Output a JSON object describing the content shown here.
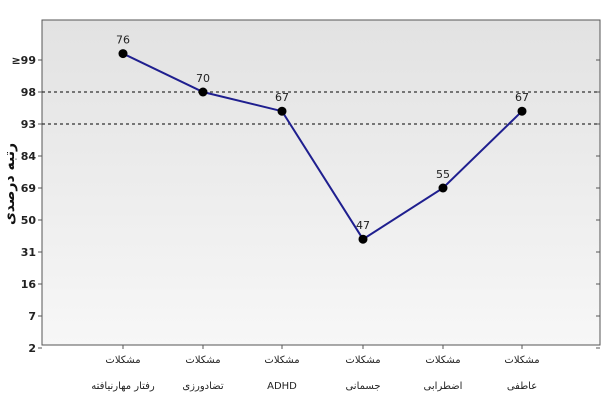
{
  "chart_data": {
    "type": "line",
    "ylabel": "رتبه درصدی",
    "y_scale": "percentile rank (T-score based)",
    "y_tick_labels": [
      "≥99",
      "98",
      "93",
      "84",
      "69",
      "50",
      "31",
      "16",
      "7",
      "2"
    ],
    "y_tick_t_scores": [
      75,
      70,
      65,
      60,
      55,
      50,
      45,
      40,
      35,
      30
    ],
    "ylim": [
      30,
      77
    ],
    "grid": false,
    "reference_lines": [
      70,
      65
    ],
    "categories": [
      {
        "line1": "مشکلات",
        "line2": "رفتار مهارنیافته"
      },
      {
        "line1": "مشکلات",
        "line2": "تضادورزی"
      },
      {
        "line1": "مشکلات",
        "line2": "ADHD"
      },
      {
        "line1": "مشکلات",
        "line2": "جسمانی"
      },
      {
        "line1": "مشکلات",
        "line2": "اضطرابی"
      },
      {
        "line1": "مشکلات",
        "line2": "عاطفی"
      }
    ],
    "series": [
      {
        "values": [
          76,
          70,
          67,
          47,
          55,
          67
        ],
        "color": "#1f1f8f"
      }
    ],
    "colors": {
      "plot_bg_top": "#e2e2e2",
      "plot_bg_bottom": "#f6f6f6",
      "line": "#1f1f8f",
      "marker": "#000000"
    }
  }
}
